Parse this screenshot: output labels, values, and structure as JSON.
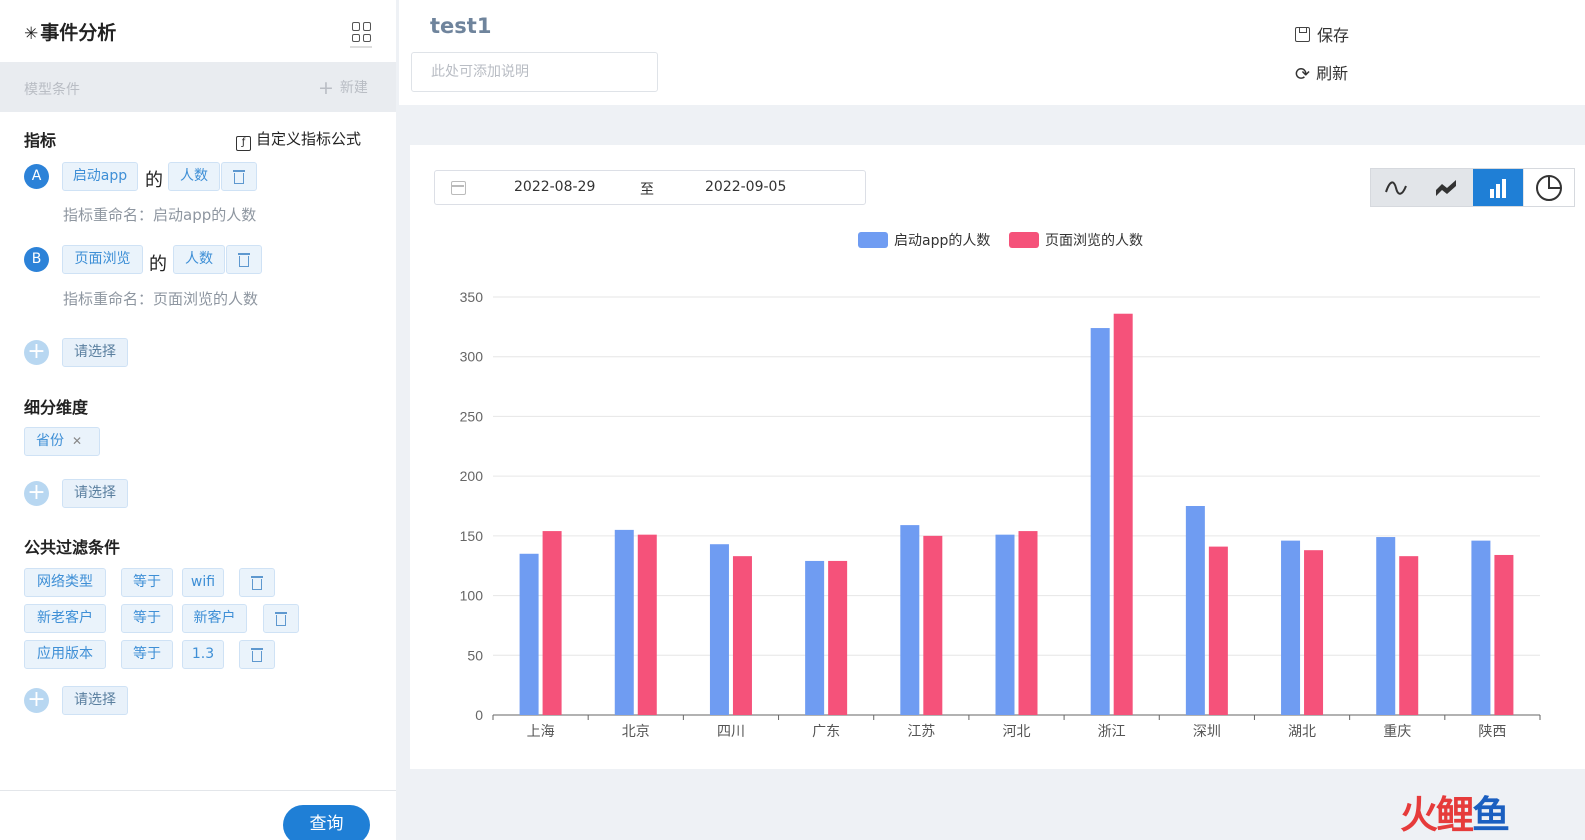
{
  "app": {
    "title_glyph": "✳",
    "title": "事件分析"
  },
  "sidebar": {
    "model_condition_label": "模型条件",
    "new_label": "新建",
    "metrics": {
      "title": "指标",
      "custom_formula_label": "自定义指标公式",
      "items": [
        {
          "badge": "A",
          "event": "启动app",
          "of": "的",
          "measure": "人数",
          "rename": "指标重命名：启动app的人数"
        },
        {
          "badge": "B",
          "event": "页面浏览",
          "of": "的",
          "measure": "人数",
          "rename": "指标重命名：页面浏览的人数"
        }
      ],
      "add_placeholder": "请选择"
    },
    "breakdown": {
      "title": "细分维度",
      "tag": "省份",
      "add_placeholder": "请选择"
    },
    "filters": {
      "title": "公共过滤条件",
      "rows": [
        {
          "field": "网络类型",
          "op": "等于",
          "value": "wifi"
        },
        {
          "field": "新老客户",
          "op": "等于",
          "value": "新客户"
        },
        {
          "field": "应用版本",
          "op": "等于",
          "value": "1.3"
        }
      ],
      "add_placeholder": "请选择"
    },
    "query_button": "查询"
  },
  "header": {
    "title": "test1",
    "description_placeholder": "此处可添加说明",
    "save_label": "保存",
    "refresh_label": "刷新"
  },
  "date_range": {
    "start": "2022-08-29",
    "separator": "至",
    "end": "2022-09-05"
  },
  "chart_toolbar": {
    "active": "bar",
    "buttons": [
      "line-icon",
      "area-icon",
      "bar-icon",
      "pie-icon"
    ]
  },
  "chart_data": {
    "type": "bar",
    "categories": [
      "上海",
      "北京",
      "四川",
      "广东",
      "江苏",
      "河北",
      "浙江",
      "深圳",
      "湖北",
      "重庆",
      "陕西"
    ],
    "series": [
      {
        "name": "启动app的人数",
        "color": "#6f9cf2",
        "values": [
          135,
          155,
          143,
          129,
          159,
          151,
          324,
          175,
          146,
          149,
          146
        ]
      },
      {
        "name": "页面浏览的人数",
        "color": "#f5527a",
        "values": [
          154,
          151,
          133,
          129,
          150,
          154,
          336,
          141,
          138,
          133,
          134
        ]
      }
    ],
    "yticks": [
      0,
      50,
      100,
      150,
      200,
      250,
      300,
      350
    ],
    "ylim": [
      0,
      350
    ],
    "grid": true,
    "legend_position": "top-center"
  },
  "watermark": {
    "p1": "火",
    "p2": "鲤",
    "p3": "鱼"
  }
}
